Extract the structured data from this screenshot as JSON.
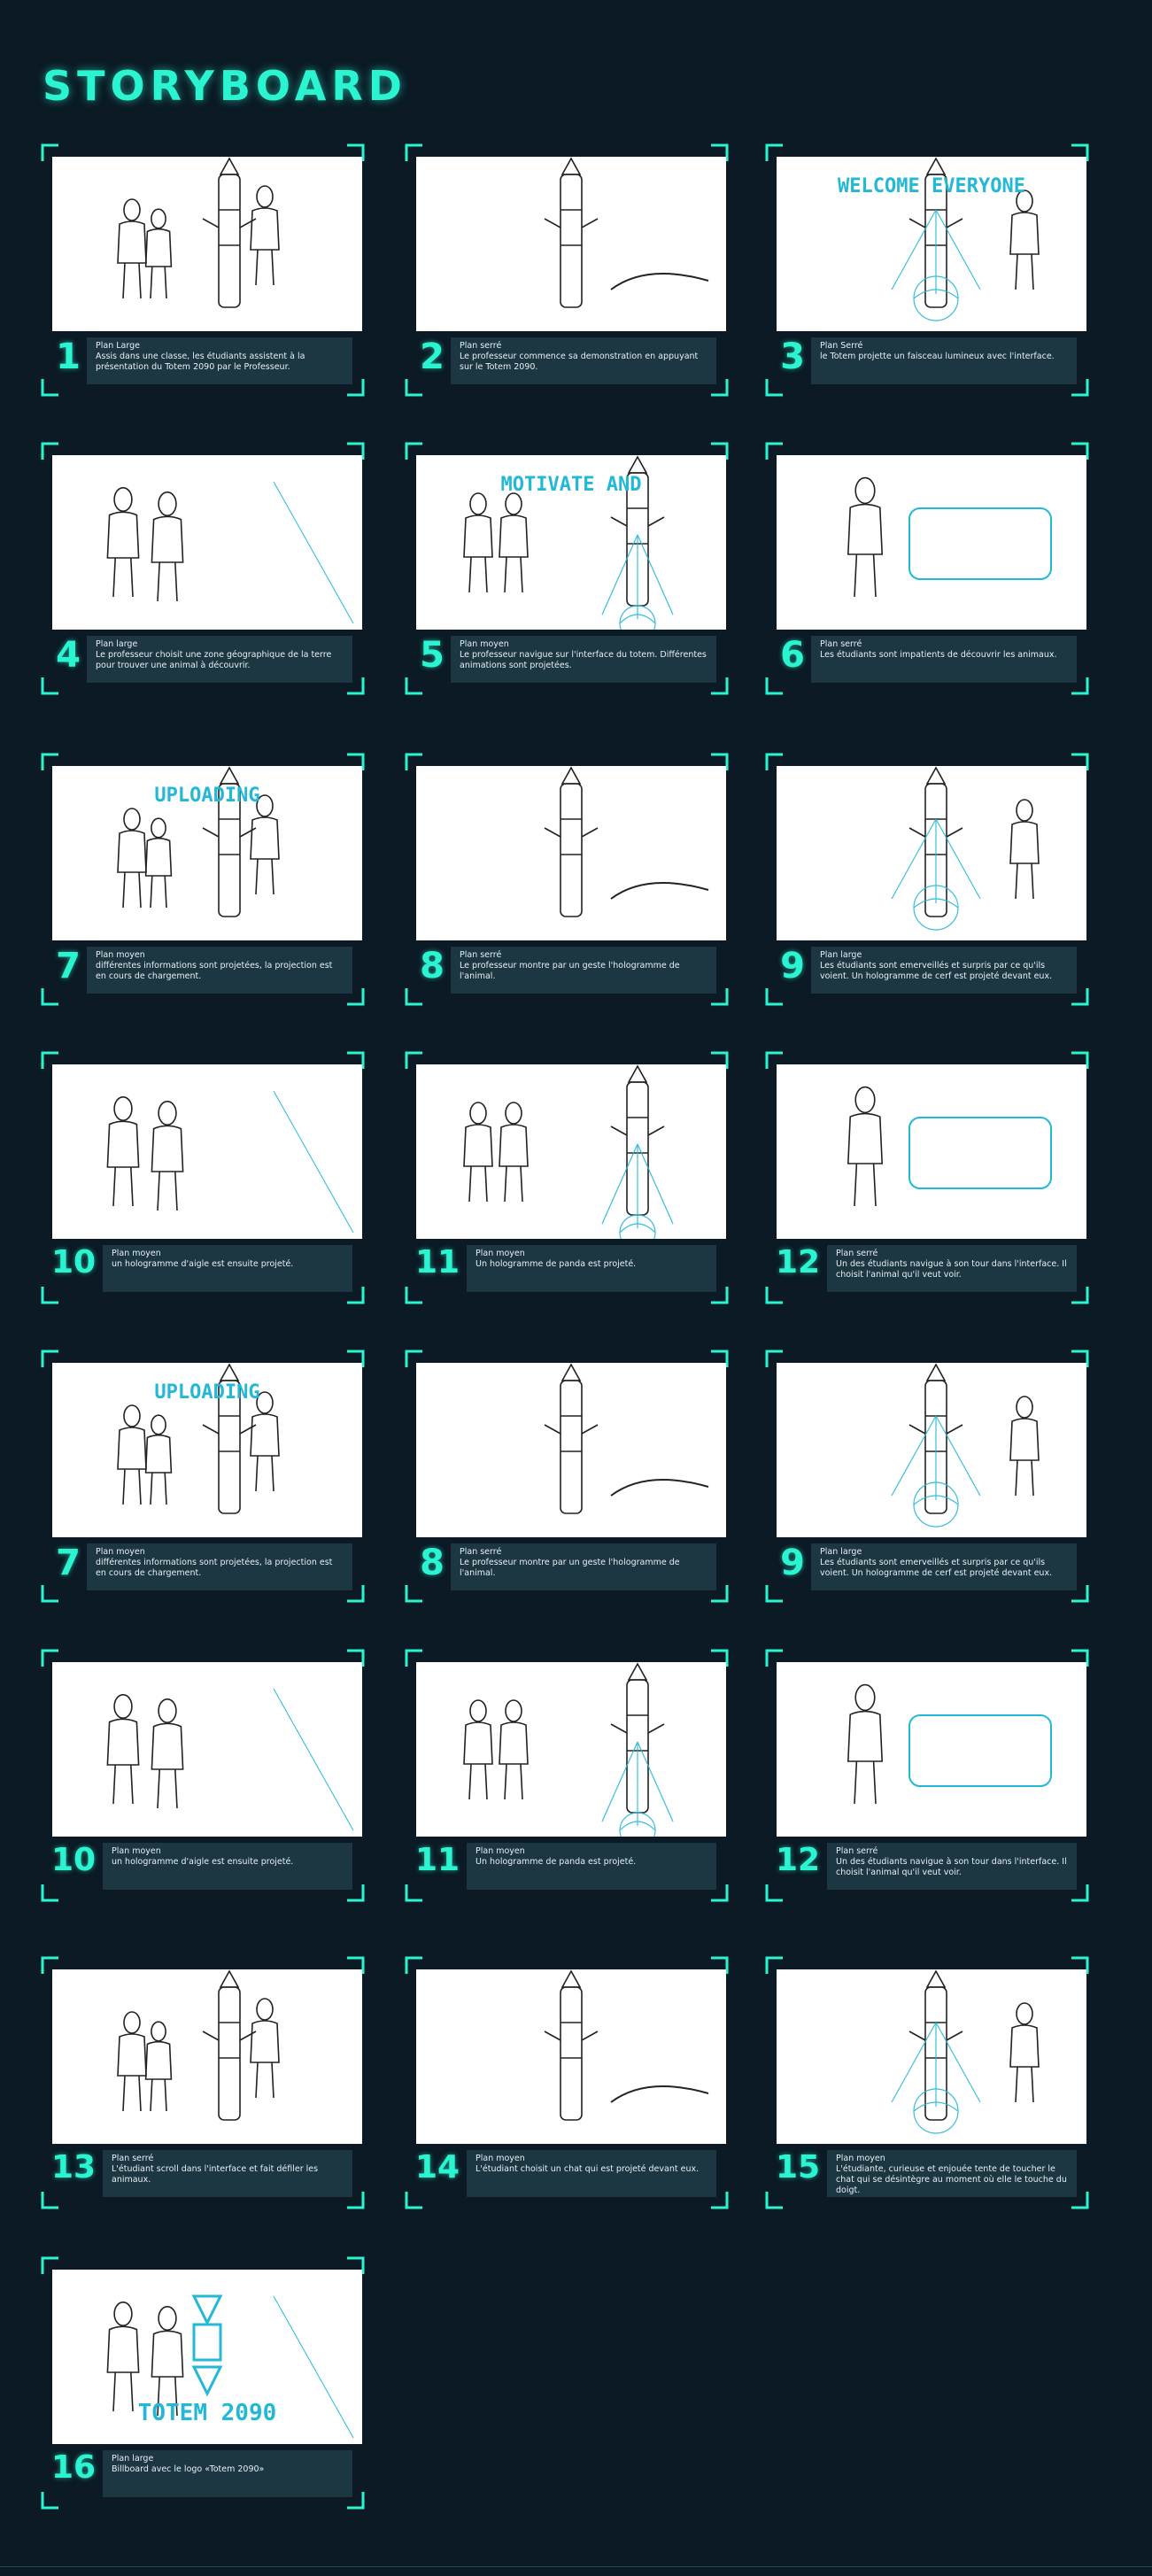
{
  "title": "STORYBOARD",
  "colors": {
    "background": "#0b1a25",
    "accent": "#2af5d0",
    "caption_bg": "#1c3642"
  },
  "panels": [
    {
      "num": "1",
      "shot": "Plan Large",
      "desc": "Assis dans une classe, les étudiants assistent à la présentation du Totem 2090 par le Professeur.",
      "art_text": ""
    },
    {
      "num": "2",
      "shot": "Plan serré",
      "desc": "Le professeur commence sa demonstration en appuyant sur le Totem 2090.",
      "art_text": ""
    },
    {
      "num": "3",
      "shot": "Plan Serré",
      "desc": "le Totem projette un faisceau lumineux avec l'interface.",
      "art_text": "WELCOME EVERYONE"
    },
    {
      "num": "4",
      "shot": "Plan large",
      "desc": "Le professeur choisit une zone géographique de la terre pour trouver une animal à découvrir.",
      "art_text": ""
    },
    {
      "num": "5",
      "shot": "Plan moyen",
      "desc": "Le professeur navigue sur l'interface du totem. Différentes animations sont projetées.",
      "art_text": "MOTIVATE AND"
    },
    {
      "num": "6",
      "shot": "Plan serré",
      "desc": "Les étudiants sont impatients de découvrir les animaux.",
      "art_text": ""
    },
    {
      "num": "7",
      "shot": "Plan moyen",
      "desc": "différentes informations sont projetées, la projection est en cours de chargement.",
      "art_text": "UPLOADING"
    },
    {
      "num": "8",
      "shot": "Plan serré",
      "desc": "Le professeur montre  par un geste l'hologramme de l'animal.",
      "art_text": ""
    },
    {
      "num": "9",
      "shot": "Plan large",
      "desc": "Les étudiants sont emerveillés et surpris par ce qu'ils voient. Un hologramme de cerf est projeté devant eux.",
      "art_text": ""
    },
    {
      "num": "10",
      "shot": "Plan moyen",
      "desc": "un hologramme d'aigle est ensuite projeté.",
      "art_text": ""
    },
    {
      "num": "11",
      "shot": "Plan moyen",
      "desc": "Un hologramme de panda est projeté.",
      "art_text": ""
    },
    {
      "num": "12",
      "shot": "Plan serré",
      "desc": "Un des étudiants navigue à son tour dans l'interface. Il choisit l'animal qu'il veut voir.",
      "art_text": ""
    },
    {
      "num": "7",
      "shot": "Plan moyen",
      "desc": "différentes informations sont projetées, la projection est en cours de chargement.",
      "art_text": "UPLOADING"
    },
    {
      "num": "8",
      "shot": "Plan serré",
      "desc": "Le professeur montre  par un geste l'hologramme de l'animal.",
      "art_text": ""
    },
    {
      "num": "9",
      "shot": "Plan large",
      "desc": "Les étudiants sont emerveillés et surpris par ce qu'ils voient. Un hologramme de cerf est projeté devant eux.",
      "art_text": ""
    },
    {
      "num": "10",
      "shot": "Plan moyen",
      "desc": "un hologramme d'aigle est ensuite projeté.",
      "art_text": ""
    },
    {
      "num": "11",
      "shot": "Plan moyen",
      "desc": "Un hologramme de panda est projeté.",
      "art_text": ""
    },
    {
      "num": "12",
      "shot": "Plan serré",
      "desc": "Un des étudiants navigue à son tour dans l'interface. Il choisit l'animal qu'il veut voir.",
      "art_text": ""
    },
    {
      "num": "13",
      "shot": "Plan serré",
      "desc": "L'étudiant scroll dans l'interface et fait défiler les animaux.",
      "art_text": ""
    },
    {
      "num": "14",
      "shot": "Plan moyen",
      "desc": "L'étudiant choisit un chat qui  est projeté devant eux.",
      "art_text": ""
    },
    {
      "num": "15",
      "shot": "Plan moyen",
      "desc": "L'étudiante, curieuse et enjouée tente de toucher le chat qui se désintègre au moment où elle le touche du doigt.",
      "art_text": ""
    },
    {
      "num": "16",
      "shot": "Plan large",
      "desc": "Billboard  avec le logo «Totem 2090»",
      "art_text": "TOTEM 2090"
    }
  ]
}
